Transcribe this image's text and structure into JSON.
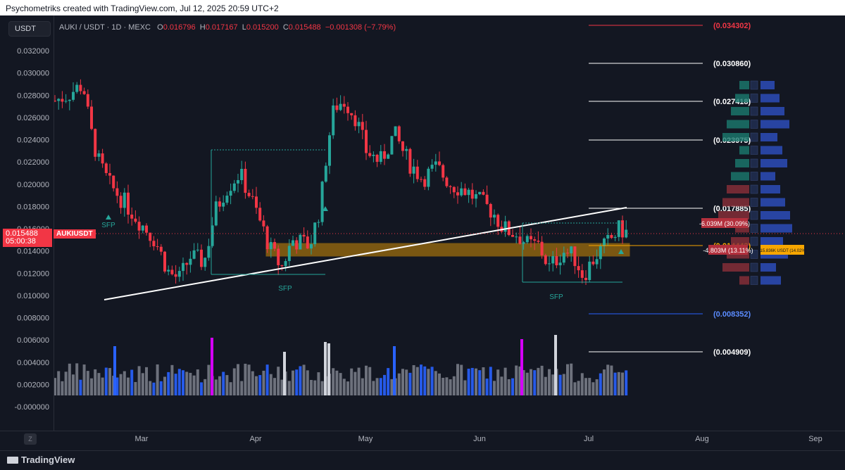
{
  "header": {
    "caption": "Psychometriks created with TradingView.com, Jul 12, 2025 20:59 UTC+2"
  },
  "chart": {
    "quote_currency_button": "USDT",
    "pair": "AUKI / USDT · 1D · MEXC",
    "ohlc": {
      "o_label": "O",
      "o": "0.016796",
      "h_label": "H",
      "h": "0.017167",
      "l_label": "L",
      "l": "0.015200",
      "c_label": "C",
      "c": "0.015488",
      "change": "−0.001308 (−7.79%)"
    },
    "last_price": "0.015488",
    "countdown": "05:00:38",
    "ticker_label": "AUKIUSDT",
    "colors": {
      "up": "#26a69a",
      "down": "#f23645",
      "background": "#131722",
      "zone": "#f7a600",
      "trendline": "#ffffff",
      "accent_magenta": "#d500f9",
      "volume_blue": "#2962ff",
      "volume_gray": "#787b86"
    },
    "sfp_label": "SFP"
  },
  "y_axis": {
    "ticks": [
      "0.032000",
      "0.030000",
      "0.028000",
      "0.026000",
      "0.024000",
      "0.022000",
      "0.020000",
      "0.018000",
      "0.016000",
      "0.014000",
      "0.012000",
      "0.010000",
      "0.008000",
      "0.006000",
      "0.004000",
      "0.002000",
      "-0.000000"
    ]
  },
  "x_axis": {
    "ticks": [
      "Mar",
      "Apr",
      "May",
      "Jun",
      "Jul",
      "Aug",
      "Sep"
    ]
  },
  "levels": {
    "l1": "(0.034302)",
    "l2": "(0.030860)",
    "l3": "(0.027418)",
    "l4": "(0.023975)",
    "l5": "(0.017885)",
    "l6": "(0.014442)",
    "l7": "(0.008352)",
    "l8": "(0.004909)"
  },
  "labels": {
    "sell_a": "-6.039M (30.09%)",
    "sell_b": "-4.803M (13.11%)",
    "buy_a": "515.836K USDT (14.02%)"
  },
  "footer": {
    "zoom_button": "Z",
    "brand": "TradingView"
  }
}
